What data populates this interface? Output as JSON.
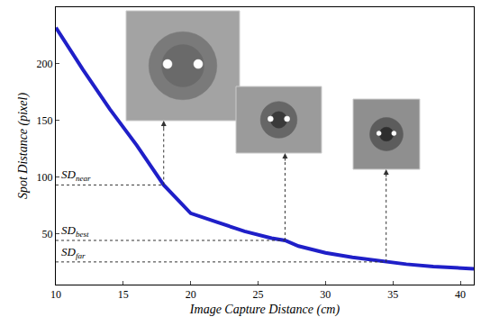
{
  "chart_data": {
    "type": "line",
    "x_label": "Image Capture Distance (cm)",
    "y_label": "Spot Distance (pixel)",
    "x": [
      10,
      12,
      14,
      16,
      18,
      20,
      22,
      24,
      26,
      27,
      28,
      30,
      32,
      34,
      35,
      36,
      38,
      40,
      41
    ],
    "values": [
      232,
      195,
      160,
      128,
      93,
      68,
      60,
      52,
      46,
      44,
      39,
      33,
      29,
      26,
      25,
      23,
      21,
      20,
      19
    ],
    "color": "#1f1fc8",
    "xlim": [
      10,
      41
    ],
    "ylim": [
      5,
      250
    ],
    "xticks": [
      10,
      15,
      20,
      25,
      30,
      35,
      40
    ],
    "yticks": [
      50,
      100,
      150,
      200
    ],
    "grid": false,
    "annotations": [
      {
        "text": "SD",
        "subscript": "near",
        "x": 18,
        "y": 93
      },
      {
        "text": "SD",
        "subscript": "best",
        "x": 27,
        "y": 44
      },
      {
        "text": "SD",
        "subscript": "far",
        "x": 34.5,
        "y": 25
      }
    ]
  }
}
